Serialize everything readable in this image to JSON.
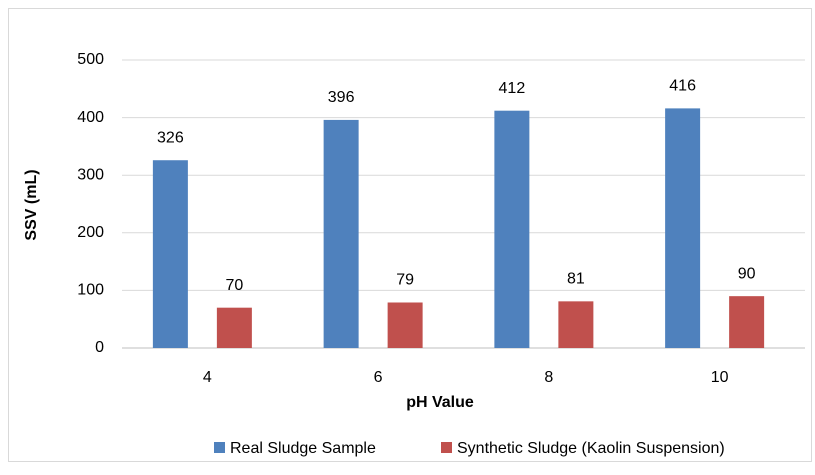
{
  "chart_data": {
    "type": "bar",
    "categories": [
      "4",
      "6",
      "8",
      "10"
    ],
    "x_label": "pH Value",
    "y_label": "SSV (mL)",
    "series": [
      {
        "name": "Real Sludge Sample",
        "color": "#4f81bd",
        "values": [
          326,
          396,
          412,
          416
        ]
      },
      {
        "name": "Synthetic Sludge (Kaolin Suspension)",
        "color": "#c0504d",
        "values": [
          70,
          79,
          81,
          90
        ]
      }
    ],
    "ylim": [
      0,
      500
    ],
    "yticks": [
      0,
      100,
      200,
      300,
      400,
      500
    ],
    "grid": true,
    "legend": "bottom"
  }
}
